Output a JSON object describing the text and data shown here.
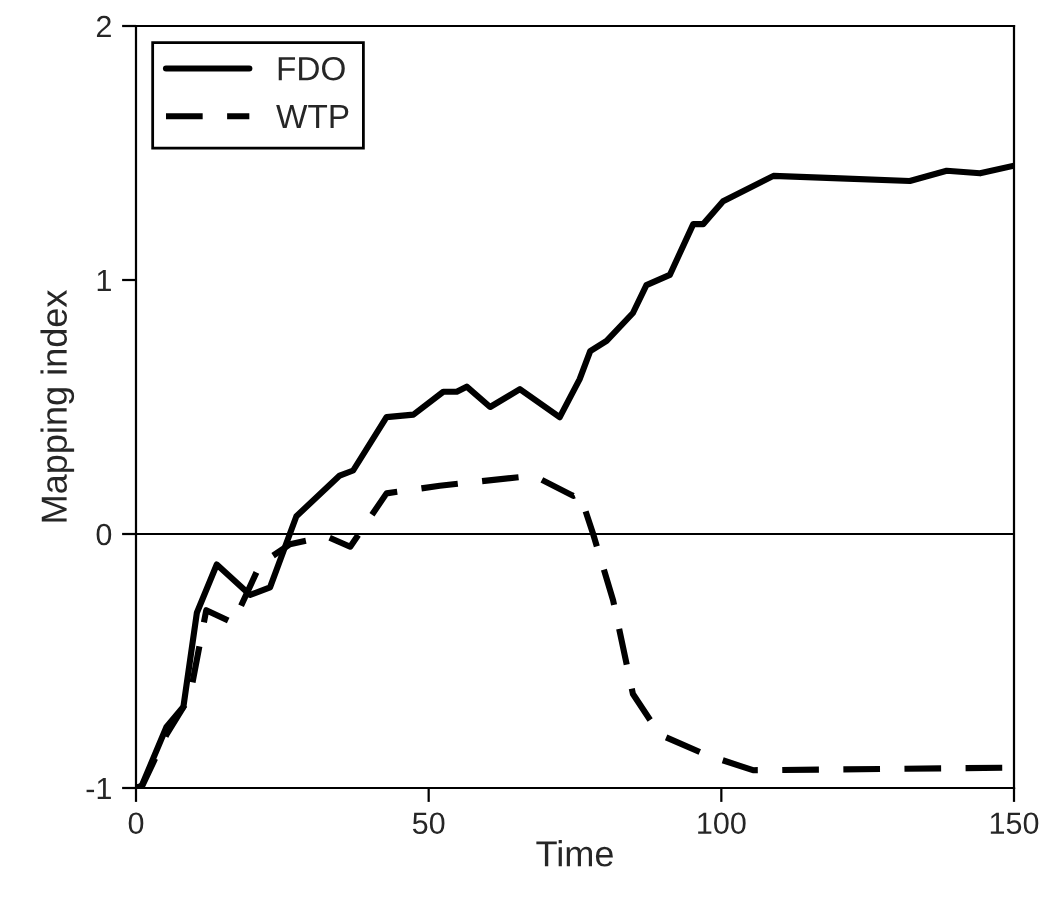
{
  "chart_data": {
    "type": "line",
    "xlabel": "Time",
    "ylabel": "Mapping index",
    "xlim": [
      0,
      150
    ],
    "ylim": [
      -1,
      2
    ],
    "xticks": [
      0,
      50,
      100,
      150
    ],
    "yticks": [
      -1,
      0,
      1,
      2
    ],
    "grid": false,
    "legend": "top left",
    "ref_lines": [
      {
        "axis": "y",
        "value": 0,
        "color": "#000000",
        "line_style": "solid"
      }
    ],
    "series": [
      {
        "name": "FDO",
        "color": "#000000",
        "line_style": "solid",
        "x": [
          0,
          1,
          5.2,
          8.1,
          10.4,
          13.8,
          19.5,
          22.9,
          27.4,
          34.8,
          37.1,
          42.8,
          47.4,
          52.5,
          54.8,
          56.5,
          60.5,
          65.6,
          72.4,
          75.8,
          77.6,
          80.4,
          84.9,
          87.2,
          91.2,
          95.2,
          96.9,
          100.3,
          108.9,
          120.3,
          132.2,
          138.5,
          144.2,
          150
        ],
        "values": [
          -1,
          -0.99,
          -0.76,
          -0.68,
          -0.31,
          -0.12,
          -0.24,
          -0.21,
          0.07,
          0.23,
          0.25,
          0.46,
          0.47,
          0.56,
          0.56,
          0.58,
          0.5,
          0.57,
          0.46,
          0.61,
          0.72,
          0.76,
          0.87,
          0.98,
          1.02,
          1.22,
          1.22,
          1.31,
          1.41,
          1.4,
          1.39,
          1.43,
          1.42,
          1.45
        ]
      },
      {
        "name": "WTP",
        "color": "#000000",
        "line_style": "dashed",
        "x": [
          0,
          1.1,
          5.2,
          9.2,
          12,
          16.6,
          21.2,
          26.3,
          32.6,
          36.6,
          42.8,
          51.9,
          67.9,
          74.7,
          75.8,
          78.1,
          81.5,
          84.9,
          89.5,
          97.5,
          105.4,
          150
        ],
        "values": [
          -1,
          -0.99,
          -0.79,
          -0.64,
          -0.3,
          -0.35,
          -0.12,
          -0.04,
          -0.01,
          -0.05,
          0.16,
          0.19,
          0.23,
          0.15,
          0.16,
          0,
          -0.26,
          -0.63,
          -0.79,
          -0.87,
          -0.93,
          -0.92
        ]
      }
    ]
  }
}
